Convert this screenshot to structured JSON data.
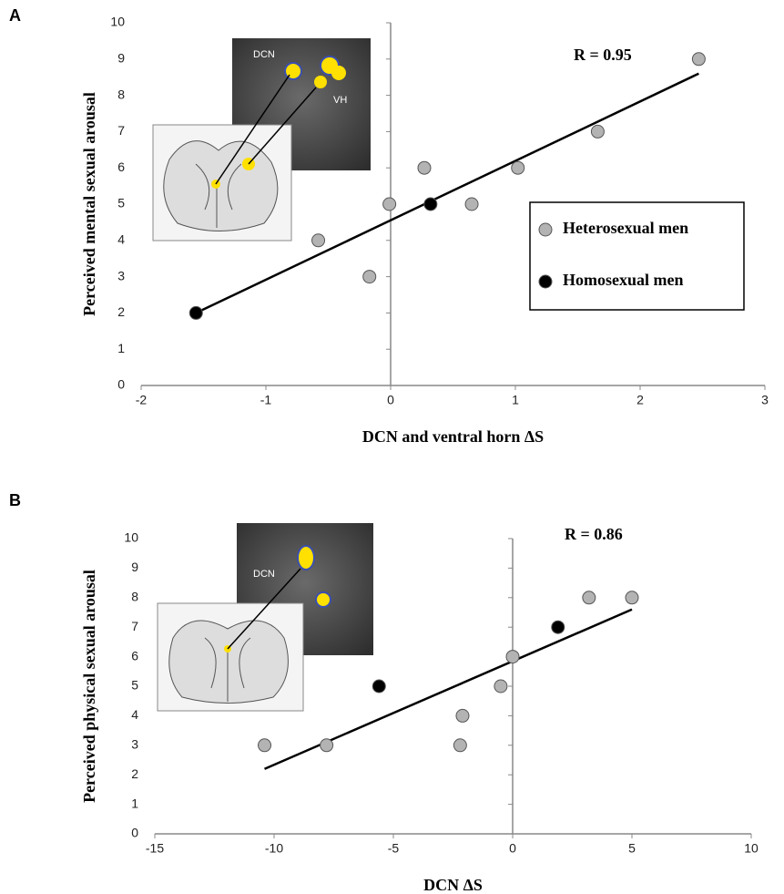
{
  "chart_data": [
    {
      "type": "scatter",
      "panel_label": "A",
      "annotation": "R = 0.95",
      "x_label": "DCN and ventral horn ΔS",
      "y_label": "Perceived mental sexual arousal",
      "xlim": [
        -2,
        3
      ],
      "xticks": [
        -2,
        -1,
        0,
        1,
        2,
        3
      ],
      "ylim": [
        0,
        10
      ],
      "yticks": [
        0,
        1,
        2,
        3,
        4,
        5,
        6,
        7,
        8,
        9,
        10
      ],
      "legend": true,
      "inset_labels": [
        "DCN",
        "VH"
      ],
      "series": [
        {
          "name": "Heterosexual men",
          "color": "#b3b3b3",
          "x": [
            -0.58,
            -0.17,
            -0.01,
            0.27,
            0.65,
            1.02,
            1.66,
            2.47
          ],
          "values": [
            4,
            3,
            5,
            6,
            5,
            6,
            7,
            9
          ]
        },
        {
          "name": "Homosexual men",
          "color": "#000000",
          "x": [
            -1.56,
            0.32
          ],
          "values": [
            2,
            5
          ]
        }
      ],
      "trendline": {
        "x": [
          -1.56,
          2.47
        ],
        "y": [
          2.0,
          8.6
        ]
      }
    },
    {
      "type": "scatter",
      "panel_label": "B",
      "annotation": "R = 0.86",
      "x_label": "DCN ΔS",
      "y_label": "Perceived physical sexual arousal",
      "xlim": [
        -15,
        10
      ],
      "xticks": [
        -15,
        -10,
        -5,
        0,
        5,
        10
      ],
      "ylim": [
        0,
        10
      ],
      "yticks": [
        0,
        1,
        2,
        3,
        4,
        5,
        6,
        7,
        8,
        9,
        10
      ],
      "legend": false,
      "inset_labels": [
        "DCN"
      ],
      "series": [
        {
          "color": "#b3b3b3",
          "x": [
            -10.4,
            -7.8,
            -2.1,
            -2.2,
            -0.5,
            0,
            3.2,
            5
          ],
          "values": [
            3,
            3,
            4,
            3,
            5,
            6,
            8,
            8
          ]
        },
        {
          "color": "#000000",
          "x": [
            -5.6,
            1.9
          ],
          "values": [
            5,
            7
          ]
        }
      ],
      "trendline": {
        "x": [
          -10.4,
          5
        ],
        "y": [
          2.2,
          7.6
        ]
      }
    }
  ]
}
